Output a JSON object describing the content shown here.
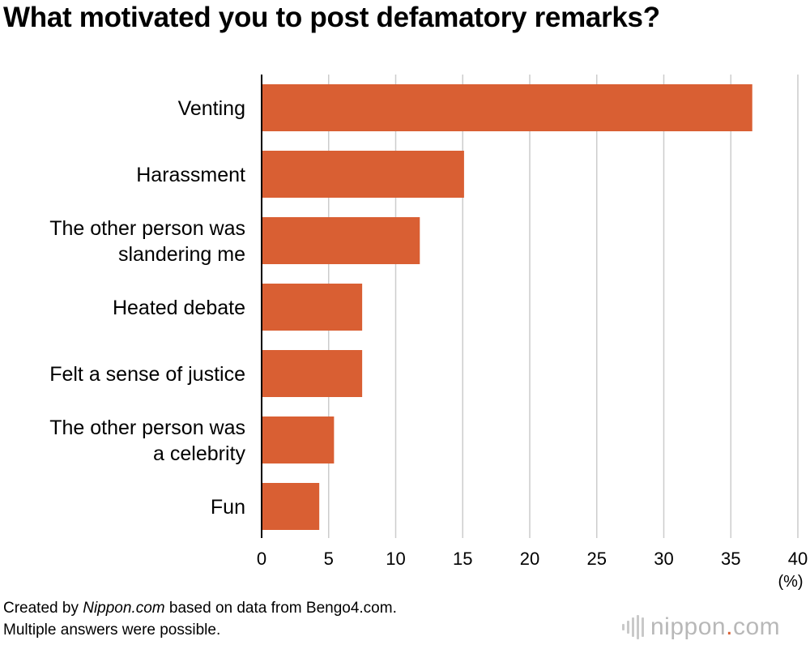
{
  "chart_data": {
    "type": "bar",
    "orientation": "horizontal",
    "title": "What motivated you to post defamatory remarks?",
    "categories": [
      [
        "Venting"
      ],
      [
        "Harassment"
      ],
      [
        "The other person was",
        "slandering me"
      ],
      [
        "Heated debate"
      ],
      [
        "Felt a sense of justice"
      ],
      [
        "The other person was",
        "a celebrity"
      ],
      [
        "Fun"
      ]
    ],
    "values": [
      36.6,
      15.1,
      11.8,
      7.5,
      7.5,
      5.4,
      4.3
    ],
    "xlim": [
      0,
      40
    ],
    "xticks": [
      0,
      5,
      10,
      15,
      20,
      25,
      30,
      35,
      40
    ],
    "xunit": "(%)",
    "grid": true,
    "bar_color": "#d95f33",
    "grid_color": "#cccccc"
  },
  "footer": {
    "source_prefix": "Created by ",
    "source_site": "Nippon.com",
    "source_suffix": " based on data from Bengo4.com.",
    "note": "Multiple answers were possible."
  },
  "logo": {
    "name": "nippon",
    "dot": ".",
    "suffix": "com",
    "icon": "sound-bars-icon"
  }
}
